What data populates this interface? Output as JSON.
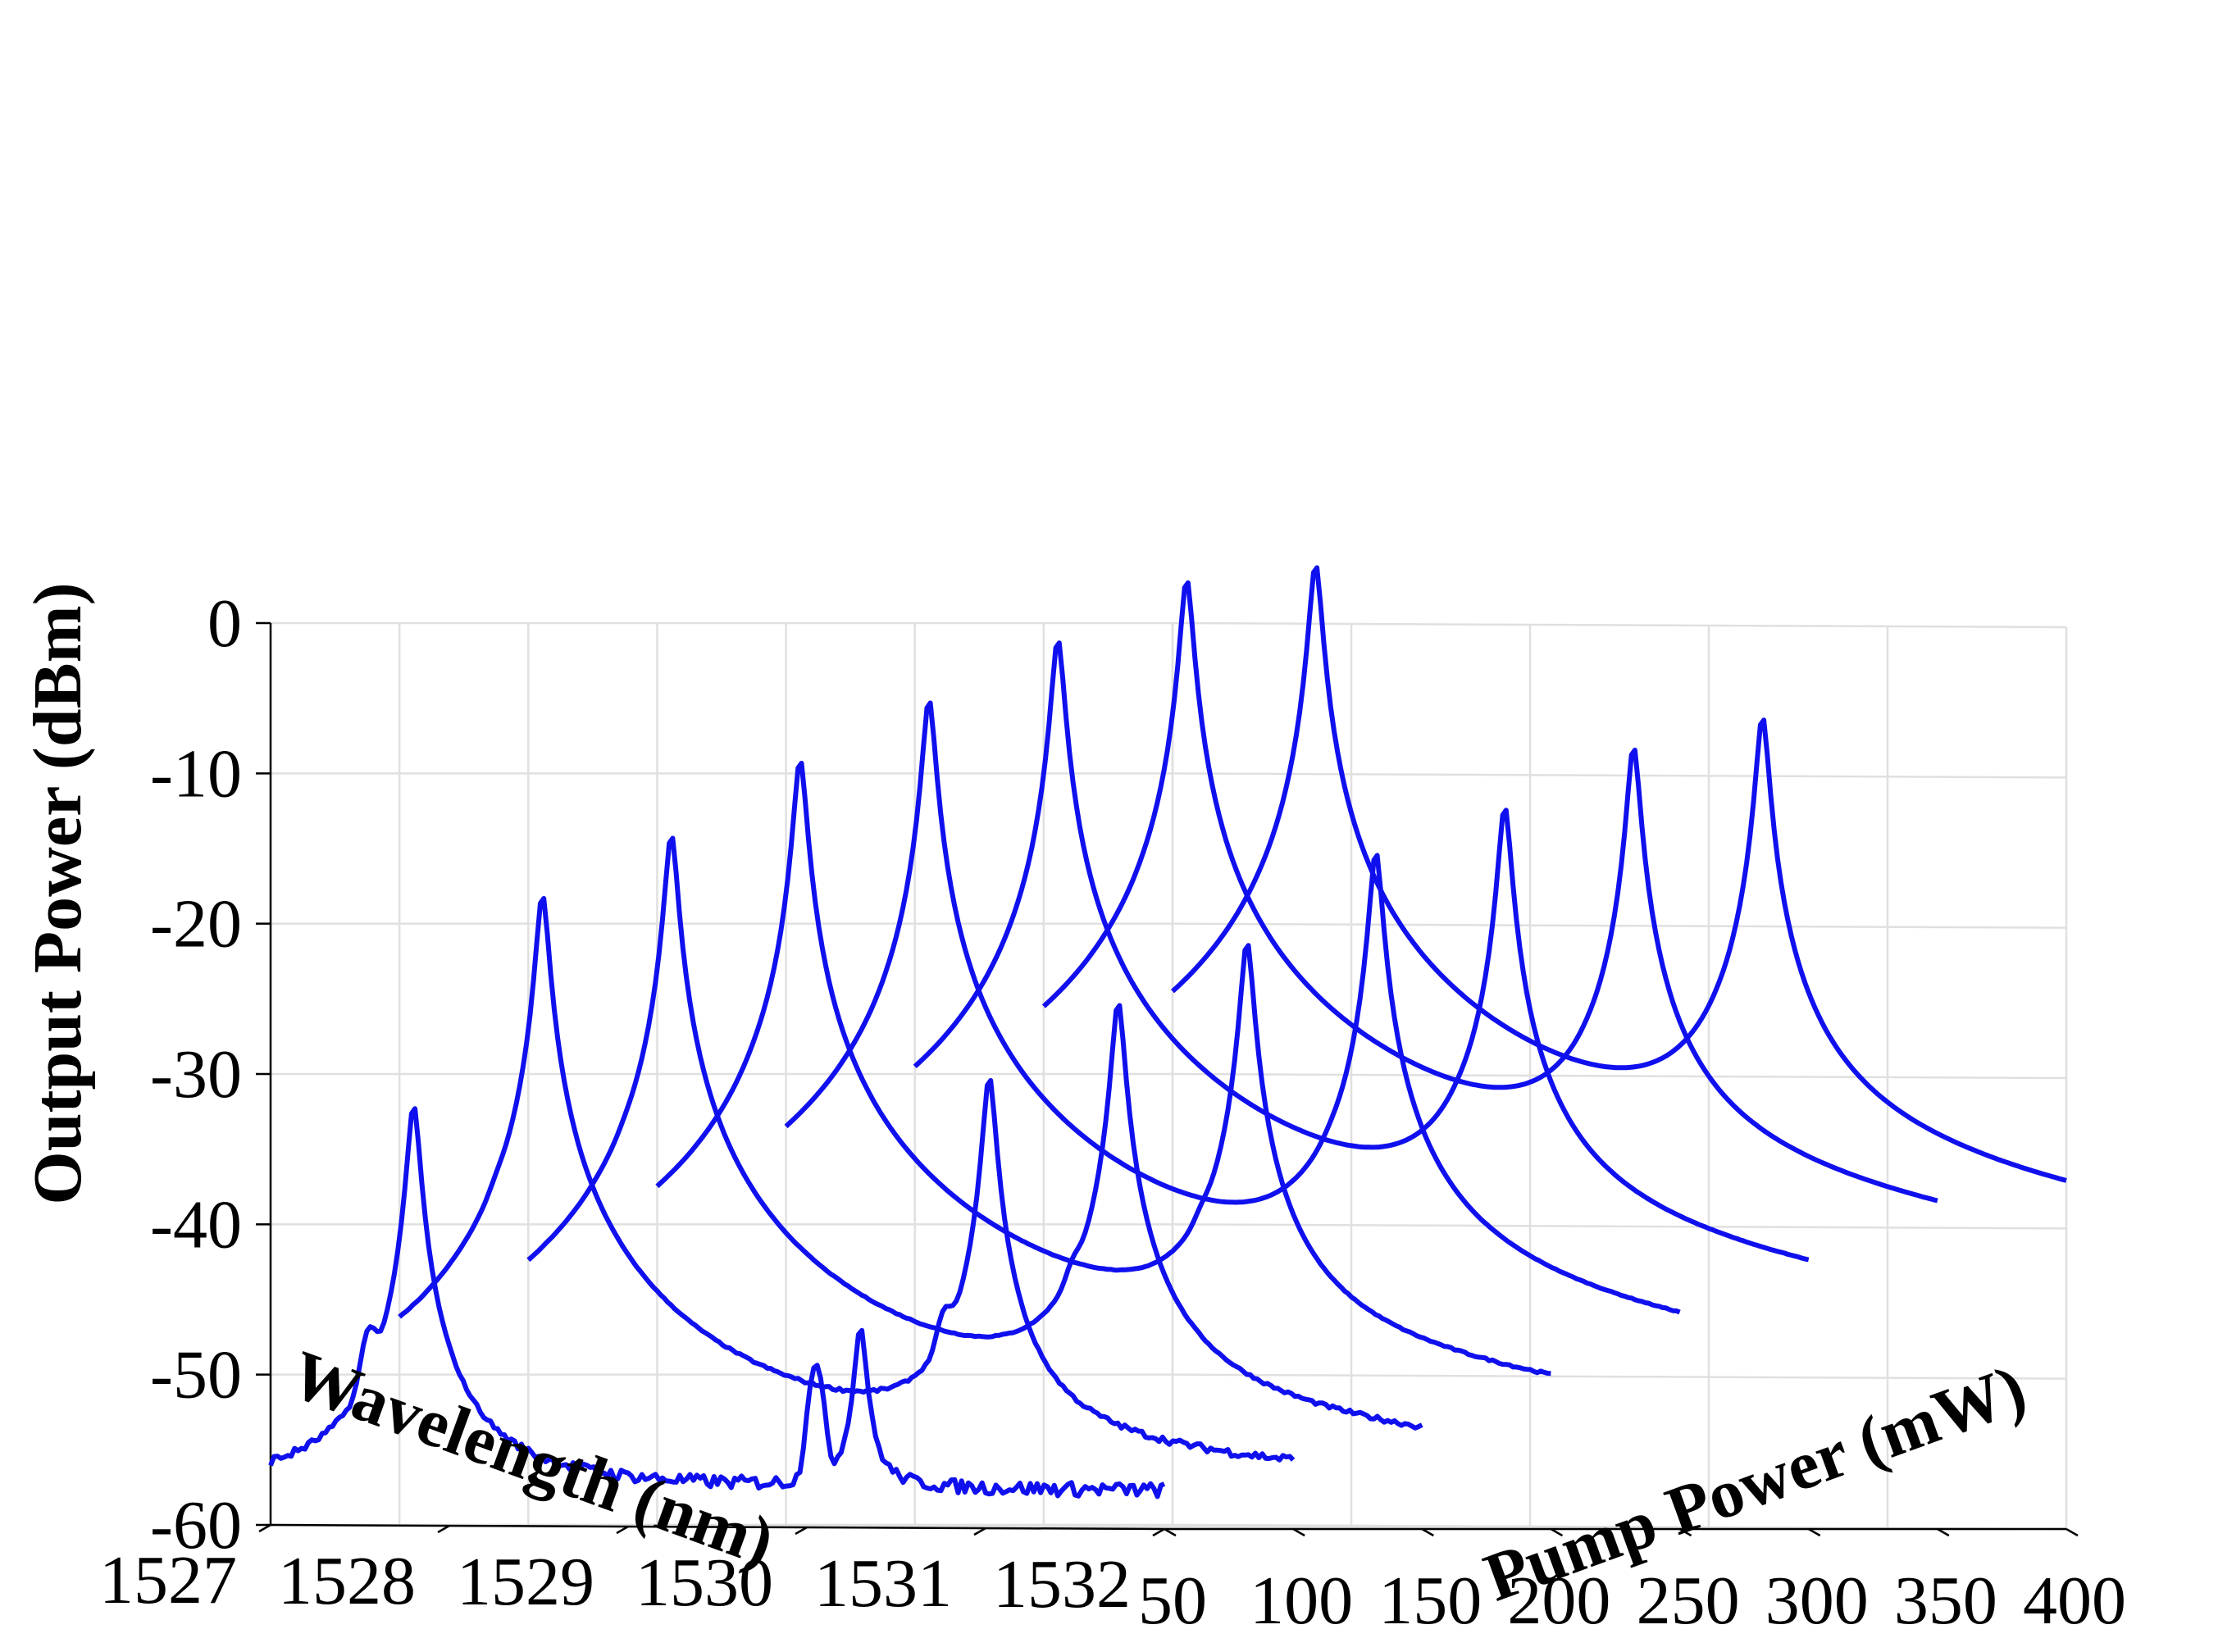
{
  "chart_data": {
    "type": "line",
    "projection": "3d-waterfall",
    "xlabel": "Wavelength (nm)",
    "ylabel": "Pump Power (mW)",
    "zlabel": "Output Power (dBm)",
    "xlim": [
      1527,
      1532
    ],
    "ylim": [
      50,
      400
    ],
    "zlim": [
      -60,
      0
    ],
    "xticks": [
      1527,
      1528,
      1529,
      1530,
      1531,
      1532
    ],
    "yticks": [
      50,
      100,
      150,
      200,
      250,
      300,
      350,
      400
    ],
    "zticks": [
      0,
      -10,
      -20,
      -30,
      -40,
      -50,
      -60
    ],
    "xtick_labels": [
      "1527",
      "1528",
      "1529",
      "1530",
      "1531",
      "1532"
    ],
    "ytick_labels": [
      "50",
      "100",
      "150",
      "200",
      "250",
      "300",
      "350",
      "400"
    ],
    "ztick_labels": [
      "0",
      "-10",
      "-20",
      "-30",
      "-40",
      "-50",
      "-60"
    ],
    "grid": true,
    "line_color": "#1010ee",
    "baseline_dbm": -58,
    "secondary_peak_offset_nm": -0.25,
    "series": [
      {
        "pump_mw": 50,
        "peaks": [
          {
            "wavelength_nm": 1527.8,
            "dbm": -32
          },
          {
            "wavelength_nm": 1530.3,
            "dbm": -47
          }
        ]
      },
      {
        "pump_mw": 100,
        "peaks": [
          {
            "wavelength_nm": 1527.8,
            "dbm": -18
          },
          {
            "wavelength_nm": 1530.3,
            "dbm": -30
          }
        ]
      },
      {
        "pump_mw": 150,
        "peaks": [
          {
            "wavelength_nm": 1527.8,
            "dbm": -14
          },
          {
            "wavelength_nm": 1530.3,
            "dbm": -25
          }
        ]
      },
      {
        "pump_mw": 200,
        "peaks": [
          {
            "wavelength_nm": 1527.8,
            "dbm": -9
          },
          {
            "wavelength_nm": 1530.3,
            "dbm": -21
          }
        ]
      },
      {
        "pump_mw": 250,
        "peaks": [
          {
            "wavelength_nm": 1527.8,
            "dbm": -5
          },
          {
            "wavelength_nm": 1530.3,
            "dbm": -15
          }
        ]
      },
      {
        "pump_mw": 300,
        "peaks": [
          {
            "wavelength_nm": 1527.8,
            "dbm": -1
          },
          {
            "wavelength_nm": 1530.3,
            "dbm": -12
          }
        ]
      },
      {
        "pump_mw": 350,
        "peaks": [
          {
            "wavelength_nm": 1527.8,
            "dbm": 3
          },
          {
            "wavelength_nm": 1530.3,
            "dbm": -8
          }
        ]
      },
      {
        "pump_mw": 400,
        "peaks": [
          {
            "wavelength_nm": 1527.8,
            "dbm": 4
          },
          {
            "wavelength_nm": 1530.3,
            "dbm": -6
          }
        ]
      }
    ]
  }
}
